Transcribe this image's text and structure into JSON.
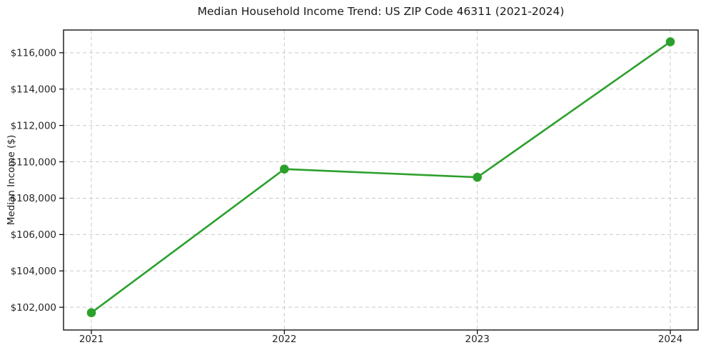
{
  "chart_data": {
    "type": "line",
    "title": "Median Household Income Trend: US ZIP Code 46311 (2021-2024)",
    "xlabel": "",
    "ylabel": "Median Income ($)",
    "categories": [
      "2021",
      "2022",
      "2023",
      "2024"
    ],
    "series": [
      {
        "name": "Median Household Income",
        "values": [
          101700,
          109600,
          109150,
          116600
        ]
      }
    ],
    "yticks": [
      102000,
      104000,
      106000,
      108000,
      110000,
      112000,
      114000,
      116000
    ],
    "ytick_labels": [
      "$102,000",
      "$104,000",
      "$106,000",
      "$108,000",
      "$110,000",
      "$112,000",
      "$114,000",
      "$116,000"
    ],
    "ylim": [
      100750,
      117250
    ],
    "grid": true,
    "grid_style": "dashed",
    "legend": "none",
    "colors": {
      "line": "#2ca02c",
      "marker": "#2ca02c",
      "grid": "#c9c9c9",
      "spine": "#000000",
      "text": "#262626",
      "background": "#ffffff"
    }
  }
}
